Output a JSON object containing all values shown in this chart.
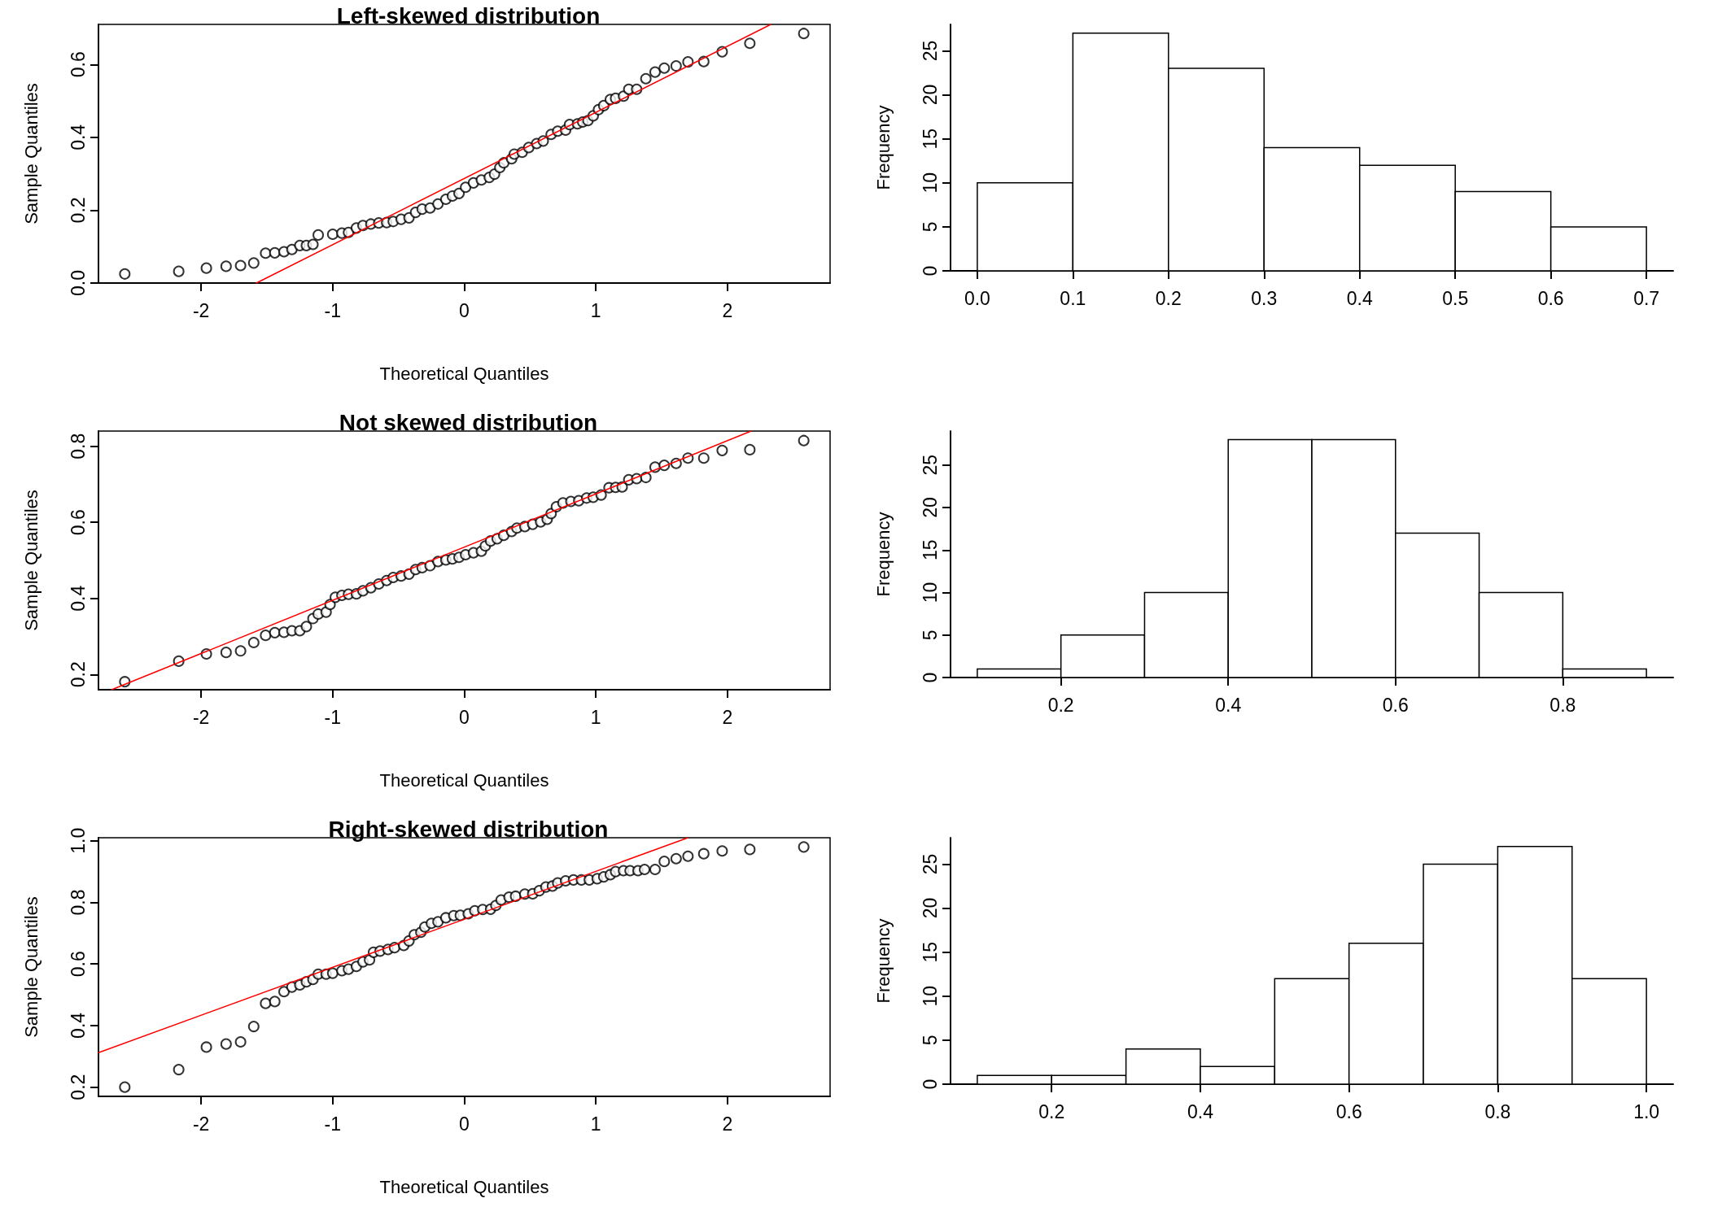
{
  "chart_data": [
    {
      "type": "scatter",
      "title": "Left-skewed distribution",
      "xlabel": "Theoretical Quantiles",
      "ylabel": "Sample Quantiles",
      "marker": "circle",
      "xlim": [
        -2.78,
        2.78
      ],
      "ylim": [
        0,
        0.71
      ],
      "xticks": [
        -2,
        -1,
        0,
        1,
        2
      ],
      "yticks": [
        {
          "value": 0,
          "label": "0.0"
        },
        0.2,
        0.4,
        0.6
      ],
      "series": [
        {
          "color": "#000000",
          "x": [
            -2.58,
            -2.17,
            -1.96,
            -1.81,
            -1.7,
            -1.6,
            -1.51,
            -1.44,
            -1.37,
            -1.31,
            -1.25,
            -1.2,
            -1.15,
            -1.11,
            -1.0,
            -0.93,
            -0.88,
            -0.82,
            -0.77,
            -0.71,
            -0.65,
            -0.59,
            -0.54,
            -0.48,
            -0.42,
            -0.37,
            -0.32,
            -0.26,
            -0.2,
            -0.14,
            -0.09,
            -0.04,
            0.01,
            0.07,
            0.13,
            0.19,
            0.23,
            0.27,
            0.3,
            0.36,
            0.38,
            0.44,
            0.49,
            0.55,
            0.6,
            0.66,
            0.71,
            0.77,
            0.8,
            0.86,
            0.9,
            0.94,
            0.98,
            1.02,
            1.06,
            1.11,
            1.15,
            1.21,
            1.25,
            1.31,
            1.38,
            1.45,
            1.52,
            1.61,
            1.7,
            1.82,
            1.96,
            2.17,
            2.58
          ],
          "values": [
            0.025,
            0.032,
            0.041,
            0.046,
            0.048,
            0.055,
            0.082,
            0.083,
            0.086,
            0.092,
            0.103,
            0.103,
            0.106,
            0.132,
            0.134,
            0.137,
            0.139,
            0.151,
            0.158,
            0.162,
            0.165,
            0.166,
            0.169,
            0.175,
            0.179,
            0.194,
            0.203,
            0.206,
            0.217,
            0.23,
            0.239,
            0.246,
            0.263,
            0.275,
            0.283,
            0.29,
            0.299,
            0.317,
            0.33,
            0.341,
            0.354,
            0.359,
            0.372,
            0.383,
            0.39,
            0.408,
            0.417,
            0.42,
            0.435,
            0.437,
            0.442,
            0.446,
            0.459,
            0.476,
            0.487,
            0.504,
            0.507,
            0.513,
            0.532,
            0.532,
            0.561,
            0.579,
            0.59,
            0.596,
            0.607,
            0.608,
            0.635,
            0.658,
            0.685
          ]
        },
        {
          "type": "line",
          "color": "#ff0000",
          "line_style": "solid",
          "marker": "none",
          "x": [
            -1.58,
            2.33
          ],
          "values": [
            0,
            0.71
          ]
        }
      ]
    },
    {
      "type": "histogram",
      "ylabel": "Frequency",
      "bins": [
        0,
        0.1,
        0.2,
        0.3,
        0.4,
        0.5,
        0.6,
        0.7
      ],
      "values": [
        10,
        27,
        23,
        14,
        12,
        9,
        5
      ],
      "xlim": [
        -0.028,
        0.728
      ],
      "ylim": [
        0,
        28
      ],
      "xticks": [
        {
          "value": 0,
          "label": "0.0"
        },
        0.1,
        0.2,
        0.3,
        0.4,
        0.5,
        0.6,
        0.7
      ],
      "yticks": [
        0,
        5,
        10,
        15,
        20,
        25
      ]
    },
    {
      "type": "scatter",
      "title": "Not skewed distribution",
      "xlabel": "Theoretical Quantiles",
      "ylabel": "Sample Quantiles",
      "marker": "circle",
      "xlim": [
        -2.78,
        2.78
      ],
      "ylim": [
        0.16,
        0.84
      ],
      "xticks": [
        -2,
        -1,
        0,
        1,
        2
      ],
      "yticks": [
        0.2,
        0.4,
        0.6,
        0.8
      ],
      "series": [
        {
          "color": "#000000",
          "x": [
            -2.58,
            -2.17,
            -1.96,
            -1.81,
            -1.7,
            -1.6,
            -1.51,
            -1.44,
            -1.37,
            -1.31,
            -1.25,
            -1.2,
            -1.15,
            -1.11,
            -1.05,
            -1.02,
            -0.98,
            -0.93,
            -0.88,
            -0.82,
            -0.77,
            -0.71,
            -0.65,
            -0.59,
            -0.54,
            -0.48,
            -0.42,
            -0.37,
            -0.32,
            -0.26,
            -0.2,
            -0.14,
            -0.09,
            -0.04,
            0.01,
            0.07,
            0.13,
            0.16,
            0.2,
            0.25,
            0.3,
            0.36,
            0.4,
            0.46,
            0.52,
            0.58,
            0.63,
            0.66,
            0.7,
            0.75,
            0.81,
            0.87,
            0.93,
            0.98,
            1.04,
            1.1,
            1.15,
            1.2,
            1.25,
            1.31,
            1.38,
            1.45,
            1.52,
            1.61,
            1.7,
            1.82,
            1.96,
            2.17,
            2.58
          ],
          "values": [
            0.181,
            0.235,
            0.254,
            0.258,
            0.262,
            0.284,
            0.303,
            0.31,
            0.311,
            0.315,
            0.315,
            0.326,
            0.347,
            0.359,
            0.364,
            0.384,
            0.403,
            0.408,
            0.411,
            0.412,
            0.42,
            0.428,
            0.438,
            0.447,
            0.455,
            0.459,
            0.464,
            0.476,
            0.481,
            0.486,
            0.497,
            0.501,
            0.504,
            0.508,
            0.515,
            0.52,
            0.524,
            0.538,
            0.551,
            0.557,
            0.566,
            0.576,
            0.585,
            0.589,
            0.595,
            0.601,
            0.608,
            0.623,
            0.641,
            0.651,
            0.655,
            0.657,
            0.664,
            0.666,
            0.672,
            0.691,
            0.692,
            0.693,
            0.712,
            0.715,
            0.718,
            0.745,
            0.75,
            0.755,
            0.769,
            0.769,
            0.789,
            0.791,
            0.815
          ]
        },
        {
          "type": "line",
          "color": "#ff0000",
          "line_style": "solid",
          "marker": "none",
          "x": [
            -2.68,
            2.18
          ],
          "values": [
            0.16,
            0.84
          ]
        }
      ]
    },
    {
      "type": "histogram",
      "ylabel": "Frequency",
      "bins": [
        0.1,
        0.2,
        0.3,
        0.4,
        0.5,
        0.6,
        0.7,
        0.8,
        0.9
      ],
      "values": [
        1,
        5,
        10,
        28,
        28,
        17,
        10,
        1
      ],
      "xlim": [
        0.068,
        0.932
      ],
      "ylim": [
        0,
        29
      ],
      "xticks": [
        0.2,
        0.4,
        0.6,
        0.8
      ],
      "yticks": [
        0,
        5,
        10,
        15,
        20,
        25
      ]
    },
    {
      "type": "scatter",
      "title": "Right-skewed distribution",
      "xlabel": "Theoretical Quantiles",
      "ylabel": "Sample Quantiles",
      "marker": "circle",
      "xlim": [
        -2.78,
        2.78
      ],
      "ylim": [
        0.17,
        1.01
      ],
      "xticks": [
        -2,
        -1,
        0,
        1,
        2
      ],
      "yticks": [
        0.2,
        0.4,
        0.6,
        0.8,
        {
          "value": 1,
          "label": "1.0"
        }
      ],
      "series": [
        {
          "color": "#000000",
          "x": [
            -2.58,
            -2.17,
            -1.96,
            -1.81,
            -1.7,
            -1.6,
            -1.51,
            -1.44,
            -1.37,
            -1.31,
            -1.25,
            -1.2,
            -1.15,
            -1.11,
            -1.05,
            -1.0,
            -0.93,
            -0.88,
            -0.82,
            -0.77,
            -0.72,
            -0.69,
            -0.64,
            -0.58,
            -0.53,
            -0.46,
            -0.42,
            -0.38,
            -0.33,
            -0.3,
            -0.25,
            -0.2,
            -0.14,
            -0.08,
            -0.03,
            0.03,
            0.08,
            0.14,
            0.2,
            0.24,
            0.28,
            0.34,
            0.39,
            0.46,
            0.52,
            0.57,
            0.62,
            0.67,
            0.71,
            0.77,
            0.83,
            0.89,
            0.95,
            1.01,
            1.06,
            1.11,
            1.15,
            1.21,
            1.26,
            1.32,
            1.37,
            1.45,
            1.52,
            1.61,
            1.7,
            1.82,
            1.96,
            2.17,
            2.58
          ],
          "values": [
            0.2,
            0.257,
            0.33,
            0.34,
            0.347,
            0.397,
            0.472,
            0.478,
            0.51,
            0.525,
            0.532,
            0.542,
            0.55,
            0.567,
            0.567,
            0.57,
            0.578,
            0.583,
            0.592,
            0.607,
            0.613,
            0.638,
            0.642,
            0.647,
            0.653,
            0.66,
            0.675,
            0.695,
            0.703,
            0.72,
            0.732,
            0.737,
            0.75,
            0.757,
            0.758,
            0.763,
            0.773,
            0.777,
            0.778,
            0.79,
            0.808,
            0.817,
            0.82,
            0.827,
            0.828,
            0.838,
            0.85,
            0.853,
            0.863,
            0.87,
            0.873,
            0.873,
            0.873,
            0.877,
            0.883,
            0.89,
            0.9,
            0.903,
            0.903,
            0.903,
            0.907,
            0.907,
            0.933,
            0.942,
            0.95,
            0.958,
            0.967,
            0.972,
            0.98
          ]
        },
        {
          "type": "line",
          "color": "#ff0000",
          "line_style": "solid",
          "marker": "none",
          "x": [
            -2.78,
            1.7
          ],
          "values": [
            0.312,
            1.01
          ]
        }
      ]
    },
    {
      "type": "histogram",
      "ylabel": "Frequency",
      "bins": [
        0.1,
        0.2,
        0.3,
        0.4,
        0.5,
        0.6,
        0.7,
        0.8,
        0.9,
        1.0
      ],
      "values": [
        1,
        1,
        4,
        2,
        12,
        16,
        25,
        27,
        12
      ],
      "xlim": [
        0.064,
        1.036
      ],
      "ylim": [
        0,
        28
      ],
      "xticks": [
        0.2,
        0.4,
        0.6,
        0.8,
        {
          "value": 1,
          "label": "1.0"
        }
      ],
      "yticks": [
        0,
        5,
        10,
        15,
        20,
        25
      ]
    }
  ]
}
